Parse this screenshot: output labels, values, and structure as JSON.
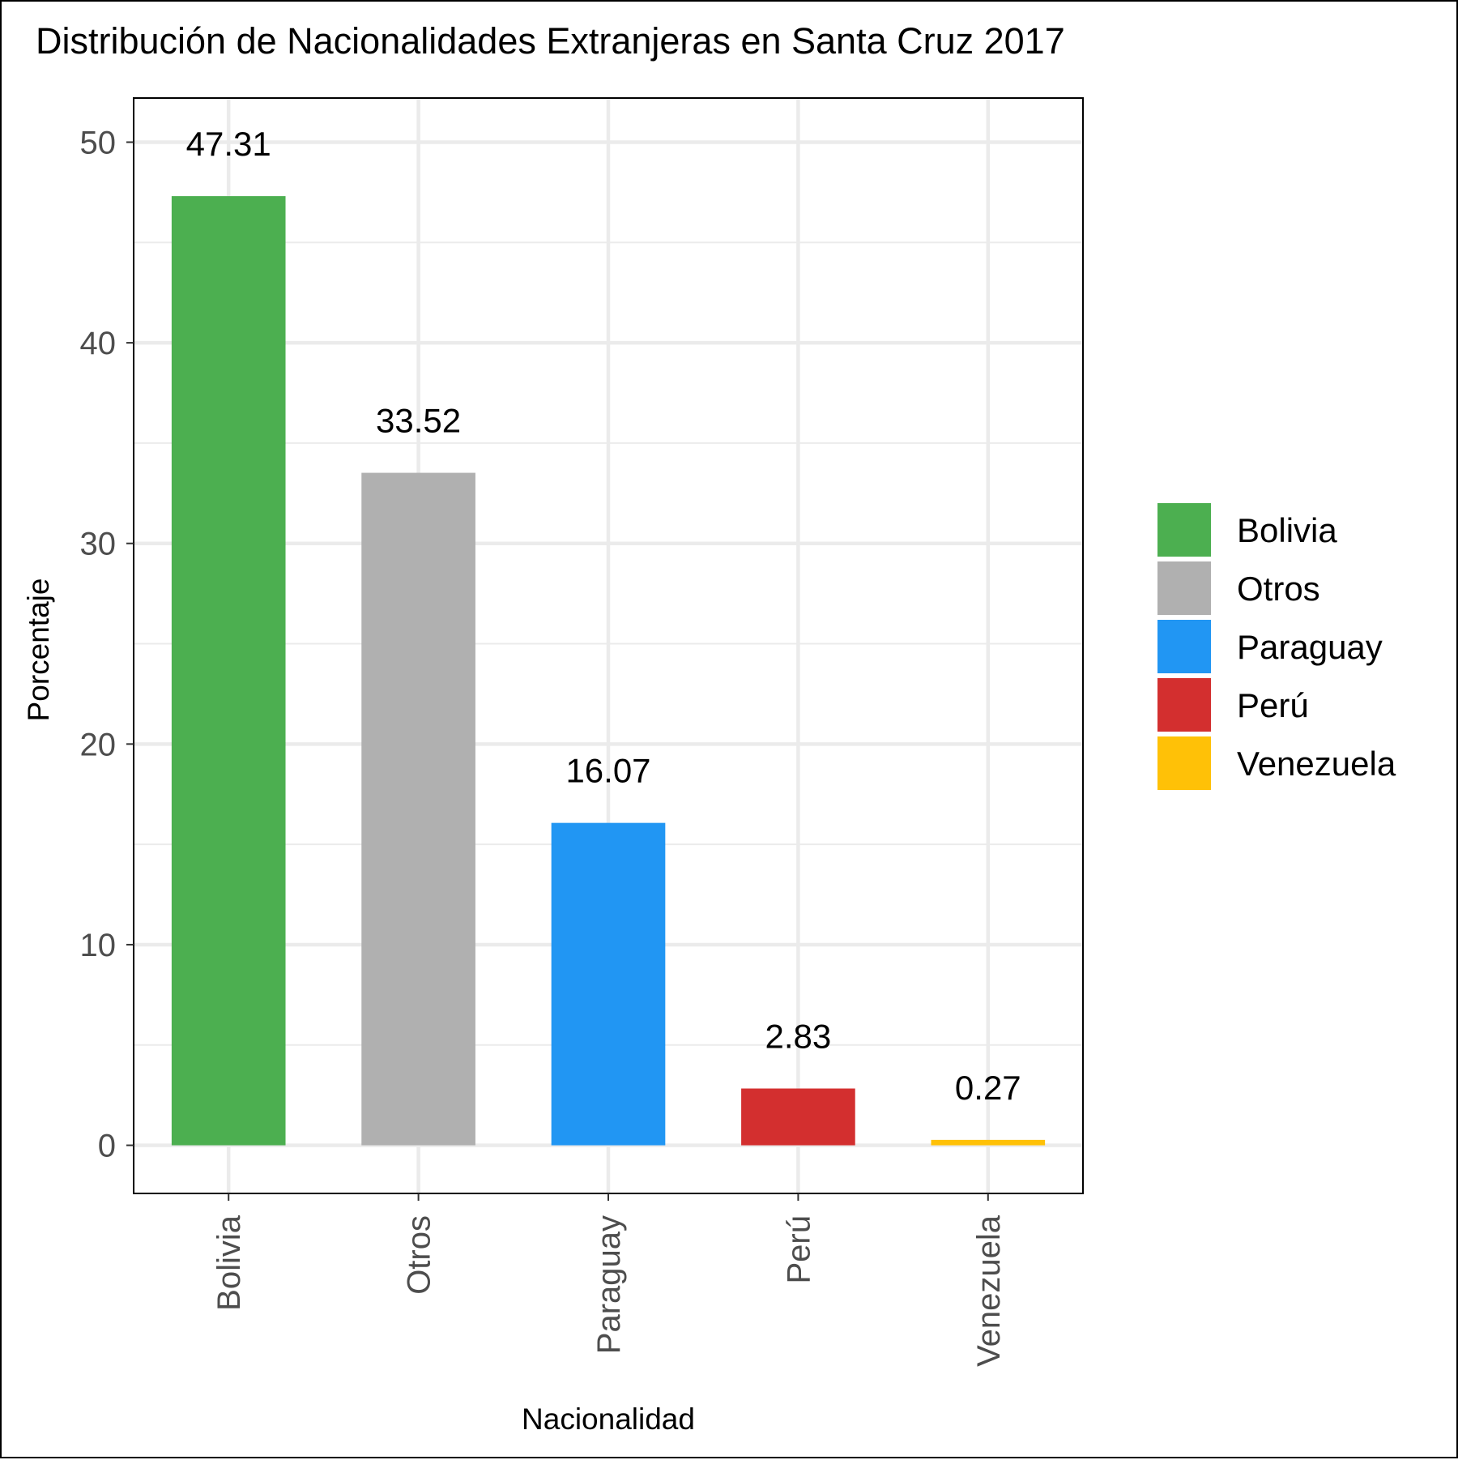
{
  "chart_data": {
    "type": "bar",
    "title": "Distribución de Nacionalidades Extranjeras en Santa Cruz 2017",
    "xlabel": "Nacionalidad",
    "ylabel": "Porcentaje",
    "categories": [
      "Bolivia",
      "Otros",
      "Paraguay",
      "Perú",
      "Venezuela"
    ],
    "values": [
      47.31,
      33.52,
      16.07,
      2.83,
      0.27
    ],
    "value_labels": [
      "47.31",
      "33.52",
      "16.07",
      "2.83",
      "0.27"
    ],
    "colors": [
      "#4caf50",
      "#b0b0b0",
      "#2196f3",
      "#d32f2f",
      "#ffc107"
    ],
    "ylim": [
      -2.4,
      52.2
    ],
    "yticks": [
      0,
      10,
      20,
      30,
      40,
      50
    ],
    "ytick_labels": [
      "0",
      "10",
      "20",
      "30",
      "40",
      "50"
    ],
    "x_tick_rotation": 90,
    "grid": true,
    "legend": {
      "position": "right",
      "entries": [
        "Bolivia",
        "Otros",
        "Paraguay",
        "Perú",
        "Venezuela"
      ]
    }
  }
}
